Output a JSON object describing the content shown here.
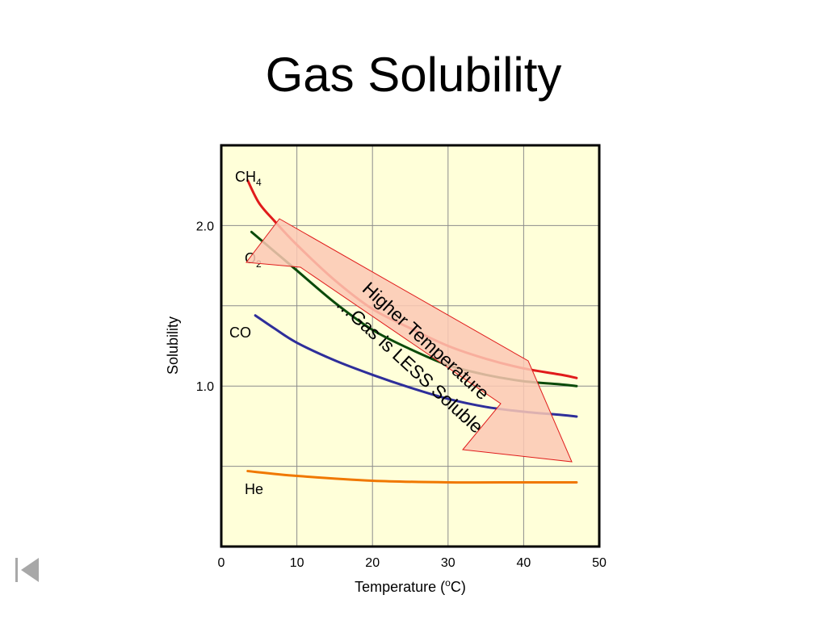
{
  "slide": {
    "title": "Gas Solubility"
  },
  "chart_data": {
    "type": "line",
    "title": "",
    "xlabel": "Temperature (oC)",
    "xlabel_base": "Temperature (",
    "xlabel_sup": "o",
    "xlabel_end": "C)",
    "ylabel": "Solubility",
    "xlim": [
      0,
      50
    ],
    "ylim": [
      0,
      2.5
    ],
    "xticks": [
      0,
      10,
      20,
      30,
      40,
      50
    ],
    "xtick_labels": [
      "0",
      "10",
      "20",
      "30",
      "40",
      "50"
    ],
    "yticks": [
      1.0,
      2.0
    ],
    "ytick_labels": [
      "1.0",
      "2.0"
    ],
    "grid": true,
    "plot_background": "#ffffd9",
    "series": [
      {
        "name": "CH4",
        "label_main": "CH",
        "label_sub": "4",
        "color": "#e01b1b",
        "x": [
          3.5,
          5,
          7,
          10,
          15,
          20,
          25,
          30,
          35,
          40,
          45,
          47
        ],
        "y": [
          2.28,
          2.14,
          2.03,
          1.88,
          1.66,
          1.48,
          1.36,
          1.25,
          1.17,
          1.11,
          1.07,
          1.05
        ]
      },
      {
        "name": "O2",
        "label_main": "O",
        "label_sub": "2",
        "color": "#0a4a0a",
        "x": [
          4,
          6,
          8,
          10,
          15,
          20,
          25,
          30,
          35,
          40,
          45,
          47
        ],
        "y": [
          1.96,
          1.88,
          1.8,
          1.72,
          1.52,
          1.35,
          1.23,
          1.13,
          1.07,
          1.03,
          1.01,
          1.0
        ]
      },
      {
        "name": "CO",
        "label_main": "CO",
        "label_sub": "",
        "color": "#2e2e9a",
        "x": [
          4.5,
          7,
          10,
          15,
          20,
          25,
          30,
          35,
          40,
          45,
          47
        ],
        "y": [
          1.44,
          1.36,
          1.27,
          1.16,
          1.07,
          0.99,
          0.92,
          0.87,
          0.84,
          0.82,
          0.81
        ]
      },
      {
        "name": "He",
        "label_main": "He",
        "label_sub": "",
        "color": "#f07800",
        "x": [
          3.5,
          10,
          20,
          30,
          40,
          47
        ],
        "y": [
          0.47,
          0.44,
          0.41,
          0.4,
          0.4,
          0.4
        ]
      }
    ],
    "annotations": [
      {
        "text": "Higher Temperature"
      },
      {
        "text": "…Gas is LESS Soluble"
      }
    ],
    "annotation_fill": "#fcc8b4",
    "annotation_stroke": "#e01b1b"
  },
  "nav": {
    "back_icon": "skip-back-icon",
    "icon_color": "#a8a8a8"
  }
}
